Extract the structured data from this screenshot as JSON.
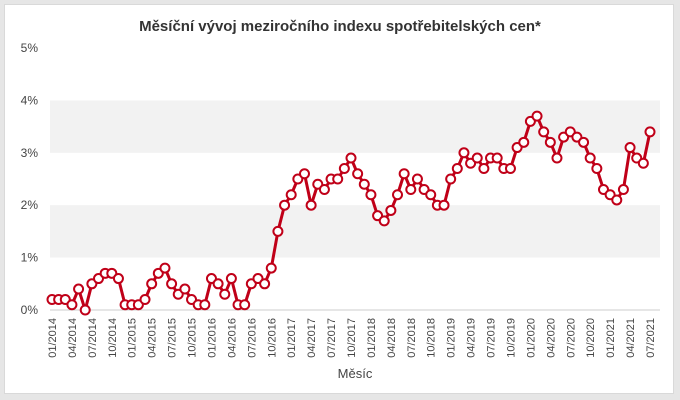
{
  "chart_data": {
    "type": "line",
    "title": "Měsíční vývoj meziročního indexu spotřebitelských cen*",
    "xlabel": "Měsíc",
    "ylabel": "",
    "ylim": [
      0,
      5
    ],
    "y_ticks": [
      "0%",
      "1%",
      "2%",
      "3%",
      "4%",
      "5%"
    ],
    "x_tick_labels": [
      "01/2014",
      "04/2014",
      "07/2014",
      "10/2014",
      "01/2015",
      "04/2015",
      "07/2015",
      "10/2015",
      "01/2016",
      "04/2016",
      "07/2016",
      "10/2016",
      "01/2017",
      "04/2017",
      "07/2017",
      "10/2017",
      "01/2018",
      "04/2018",
      "07/2018",
      "10/2018",
      "01/2019",
      "04/2019",
      "07/2019",
      "10/2019",
      "01/2020",
      "04/2020",
      "07/2020",
      "10/2020",
      "01/2021",
      "04/2021",
      "07/2021"
    ],
    "grid": "alternating bands",
    "legend": "none",
    "series": [
      {
        "values": [
          0.2,
          0.2,
          0.2,
          0.1,
          0.4,
          0.0,
          0.5,
          0.6,
          0.7,
          0.7,
          0.6,
          0.1,
          0.1,
          0.1,
          0.2,
          0.5,
          0.7,
          0.8,
          0.5,
          0.3,
          0.4,
          0.2,
          0.1,
          0.1,
          0.6,
          0.5,
          0.3,
          0.6,
          0.1,
          0.1,
          0.5,
          0.6,
          0.5,
          0.8,
          1.5,
          2.0,
          2.2,
          2.5,
          2.6,
          2.0,
          2.4,
          2.3,
          2.5,
          2.5,
          2.7,
          2.9,
          2.6,
          2.4,
          2.2,
          1.8,
          1.7,
          1.9,
          2.2,
          2.6,
          2.3,
          2.5,
          2.3,
          2.2,
          2.0,
          2.0,
          2.5,
          2.7,
          3.0,
          2.8,
          2.9,
          2.7,
          2.9,
          2.9,
          2.7,
          2.7,
          3.1,
          3.2,
          3.6,
          3.7,
          3.4,
          3.2,
          2.9,
          3.3,
          3.4,
          3.3,
          3.2,
          2.9,
          2.7,
          2.3,
          2.2,
          2.1,
          2.3,
          3.1,
          2.9,
          2.8,
          3.4
        ]
      }
    ]
  },
  "colors": {
    "line": "#c00018",
    "marker_fill": "#ffffff",
    "band": "#f2f2f2",
    "background": "#ffffff",
    "frame": "#e6e6e6"
  }
}
